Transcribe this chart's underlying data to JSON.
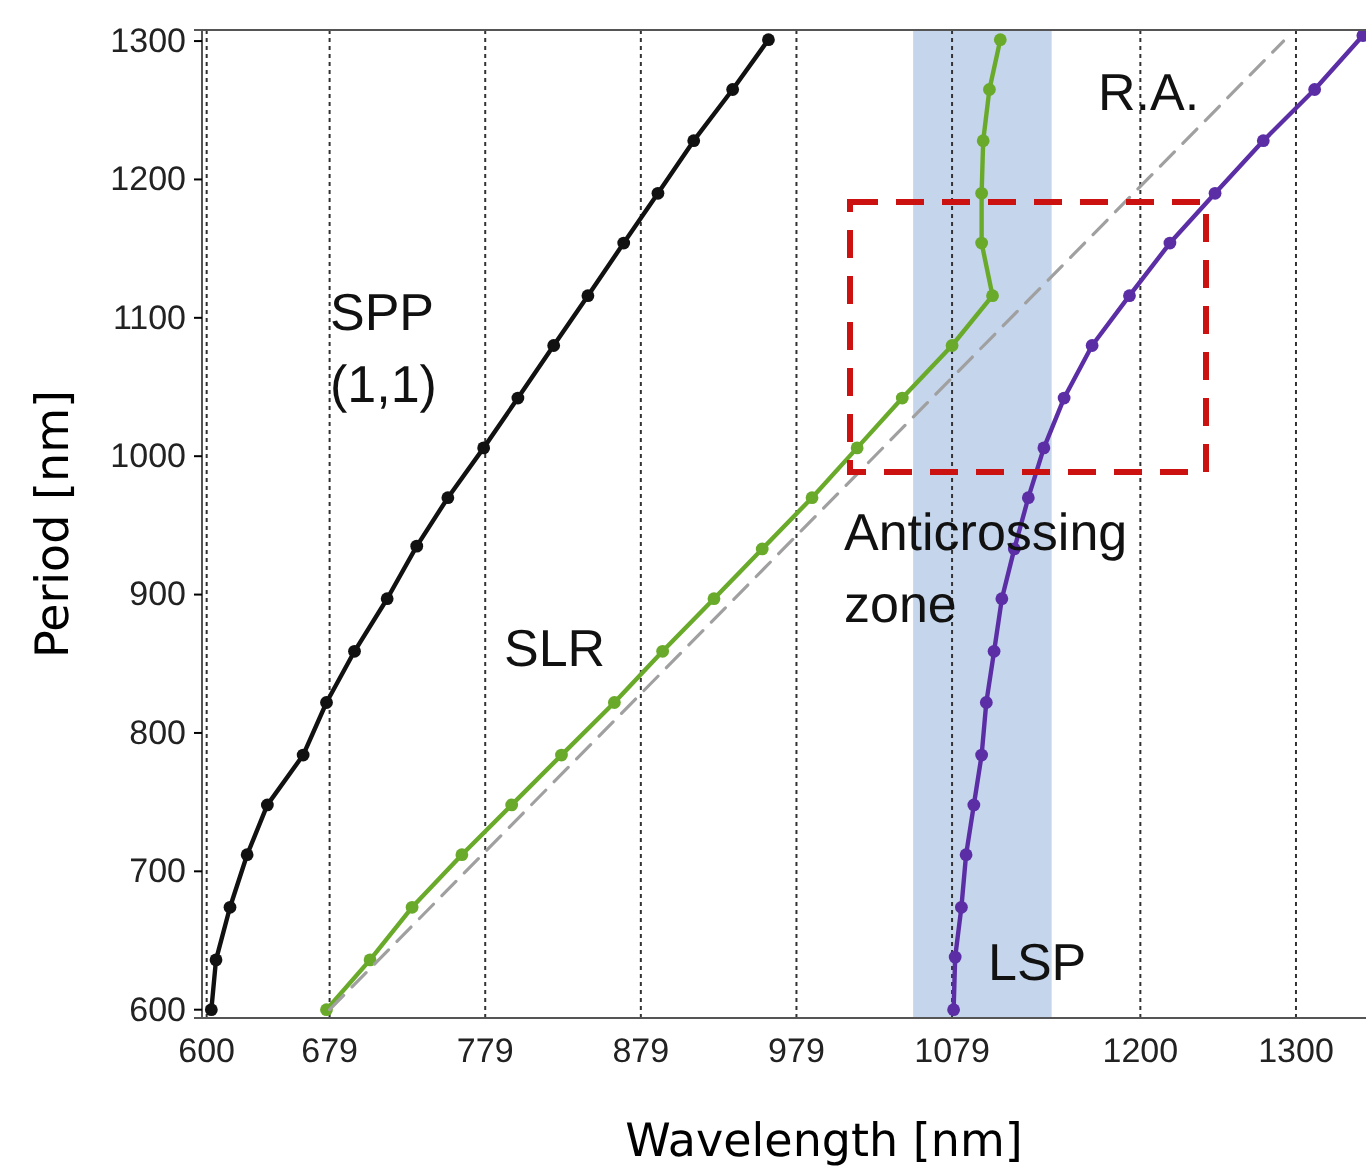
{
  "chart_data": {
    "type": "line",
    "xlabel": "Wavelength [nm]",
    "ylabel": "Period [nm]",
    "xlim": [
      597,
      1345
    ],
    "ylim": [
      594,
      1308
    ],
    "xticks": [
      600,
      679,
      779,
      879,
      979,
      1079,
      1200,
      1300
    ],
    "yticks": [
      600,
      700,
      800,
      900,
      1000,
      1100,
      1200,
      1300
    ],
    "grid": "x",
    "marker": "circle",
    "line_style": "solid",
    "bands": [
      {
        "axis": "x",
        "from": 1054,
        "to": 1143,
        "color": "#c5d5ec"
      }
    ],
    "series": [
      {
        "name": "SPP (1,1)",
        "color": "#111111",
        "x": [
          603,
          606,
          615,
          626,
          639,
          662,
          677,
          695,
          716,
          735,
          755,
          778,
          800,
          823,
          845,
          868,
          890,
          913,
          938,
          961
        ],
        "values": [
          600,
          636,
          674,
          712,
          748,
          784,
          822,
          859,
          897,
          935,
          970,
          1006,
          1042,
          1080,
          1116,
          1154,
          1190,
          1228,
          1265,
          1301
        ]
      },
      {
        "name": "SLR",
        "color": "#6aaa2a",
        "x": [
          677,
          705,
          732,
          764,
          796,
          828,
          862,
          893,
          926,
          957,
          989,
          1018,
          1047,
          1079,
          1105,
          1098,
          1098,
          1099,
          1103,
          1110
        ],
        "values": [
          600,
          636,
          674,
          712,
          748,
          784,
          822,
          859,
          897,
          933,
          970,
          1006,
          1042,
          1080,
          1116,
          1154,
          1190,
          1228,
          1265,
          1301
        ]
      },
      {
        "name": "LSP",
        "color": "#5b2ea6",
        "x": [
          1080,
          1081,
          1085,
          1088,
          1093,
          1098,
          1101,
          1106,
          1111,
          1119,
          1128,
          1138,
          1151,
          1169,
          1193,
          1219,
          1248,
          1279,
          1312,
          1343
        ],
        "values": [
          600,
          638,
          674,
          712,
          748,
          784,
          822,
          859,
          897,
          933,
          970,
          1006,
          1042,
          1080,
          1116,
          1154,
          1190,
          1228,
          1265,
          1304
        ]
      },
      {
        "name": "R.A.",
        "color": "#a0a0a0",
        "marker": "none",
        "line_style": "dashed",
        "x": [
          679,
          1292
        ],
        "values": [
          600,
          1300
        ]
      }
    ],
    "annotations": [
      "Anticrossing zone"
    ]
  }
}
